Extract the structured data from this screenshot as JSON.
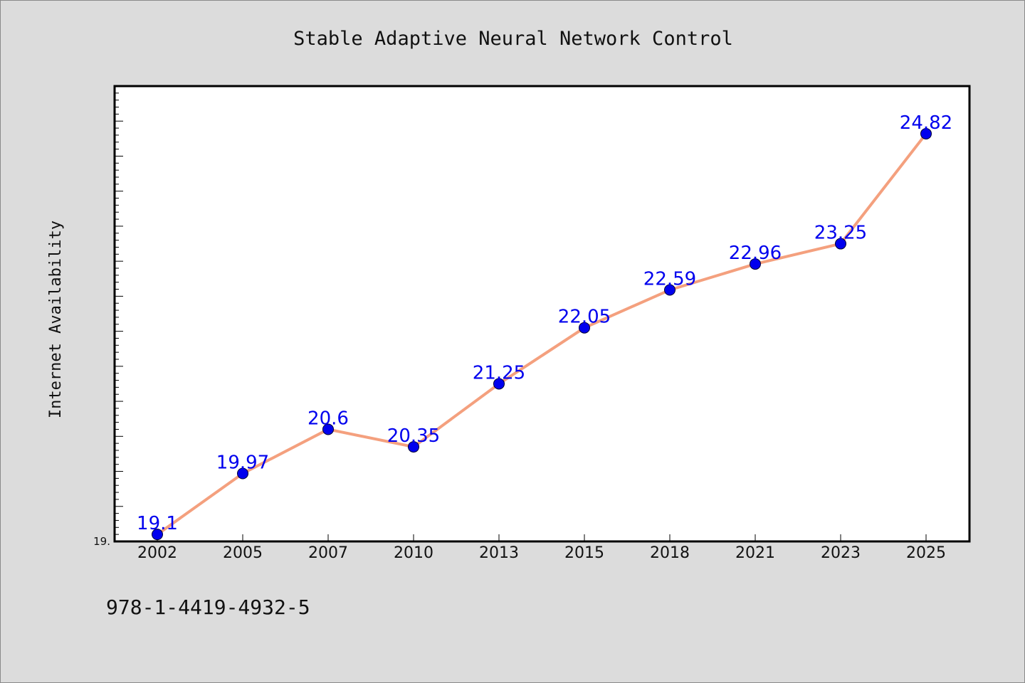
{
  "figure": {
    "footer_text": "978-1-4419-4932-5"
  },
  "chart_data": {
    "type": "line",
    "title": "Stable Adaptive Neural Network Control",
    "xlabel": "",
    "ylabel": "Internet Availability",
    "categories": [
      "2002",
      "2005",
      "2007",
      "2010",
      "2013",
      "2015",
      "2018",
      "2021",
      "2023",
      "2025"
    ],
    "series": [
      {
        "values": [
          19.1,
          19.97,
          20.6,
          20.35,
          21.25,
          22.05,
          22.59,
          22.96,
          23.25,
          24.82
        ],
        "labels": [
          "19.1",
          "19.97",
          "20.6",
          "20.35",
          "21.25",
          "22.05",
          "22.59",
          "22.96",
          "23.25",
          "24.82"
        ],
        "line_color": "#f4a07e",
        "marker_color": "#0000ee",
        "label_color": "#0000ee"
      }
    ],
    "ylim": [
      19.0,
      25.5
    ],
    "y_tick_labels": [
      {
        "value": 19.0,
        "label": "19."
      }
    ],
    "y_minor_step": 0.1,
    "y_major_step": 0.5,
    "grid": false,
    "legend": "none",
    "colors": {
      "figure_background": "#dcdcdc",
      "plot_background": "#ffffff",
      "axis": "#000000"
    }
  }
}
